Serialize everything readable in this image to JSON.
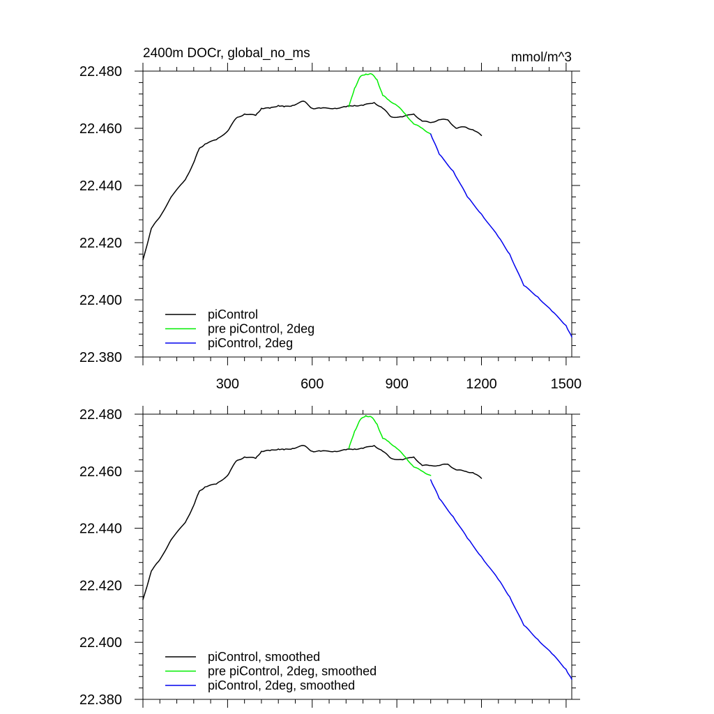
{
  "chart_data": [
    {
      "type": "line",
      "title": "2400m DOCr, global_no_ms",
      "units": "mmol/m^3",
      "xlim": [
        0,
        1520
      ],
      "ylim": [
        22.38,
        22.48
      ],
      "xticks": [
        300,
        600,
        900,
        1200,
        1500
      ],
      "xtick_labels": [
        "300",
        "600",
        "900",
        "1200",
        "1500"
      ],
      "yticks": [
        22.38,
        22.4,
        22.42,
        22.44,
        22.46,
        22.48
      ],
      "ytick_labels": [
        "22.380",
        "22.400",
        "22.420",
        "22.440",
        "22.460",
        "22.480"
      ],
      "legend_position": "bottom-left",
      "series": [
        {
          "name": "piControl",
          "color": "#000000",
          "x": [
            0,
            30,
            60,
            100,
            150,
            180,
            200,
            220,
            260,
            300,
            330,
            360,
            400,
            420,
            450,
            480,
            500,
            530,
            570,
            600,
            630,
            680,
            720,
            750,
            780,
            820,
            850,
            880,
            920,
            960,
            990,
            1020,
            1050,
            1080,
            1110,
            1140,
            1170,
            1200
          ],
          "y": [
            22.414,
            22.425,
            22.429,
            22.436,
            22.442,
            22.448,
            22.453,
            22.4545,
            22.456,
            22.459,
            22.4635,
            22.465,
            22.4645,
            22.467,
            22.467,
            22.468,
            22.4675,
            22.468,
            22.4695,
            22.467,
            22.467,
            22.467,
            22.4675,
            22.468,
            22.468,
            22.469,
            22.467,
            22.464,
            22.464,
            22.465,
            22.4625,
            22.462,
            22.463,
            22.463,
            22.46,
            22.4605,
            22.4595,
            22.4575
          ]
        },
        {
          "name": "pre piControl, 2deg",
          "color": "#00ee00",
          "x": [
            730,
            750,
            770,
            790,
            810,
            830,
            850,
            870,
            900,
            930,
            960,
            990,
            1020
          ],
          "y": [
            22.4675,
            22.474,
            22.478,
            22.479,
            22.479,
            22.477,
            22.4715,
            22.47,
            22.468,
            22.465,
            22.4615,
            22.46,
            22.458
          ]
        },
        {
          "name": "piControl, 2deg",
          "color": "#0000ee",
          "x": [
            1020,
            1050,
            1100,
            1150,
            1200,
            1260,
            1300,
            1350,
            1400,
            1450,
            1500,
            1520
          ],
          "y": [
            22.458,
            22.451,
            22.445,
            22.436,
            22.43,
            22.422,
            22.416,
            22.405,
            22.401,
            22.396,
            22.391,
            22.387
          ]
        }
      ]
    },
    {
      "type": "line",
      "title": "",
      "units": "",
      "xlim": [
        0,
        1520
      ],
      "ylim": [
        22.38,
        22.48
      ],
      "xticks": [
        300,
        600,
        900,
        1200,
        1500
      ],
      "xtick_labels": [],
      "yticks": [
        22.38,
        22.4,
        22.42,
        22.44,
        22.46,
        22.48
      ],
      "ytick_labels": [
        "22.380",
        "22.400",
        "22.420",
        "22.440",
        "22.460",
        "22.480"
      ],
      "legend_position": "bottom-left",
      "series": [
        {
          "name": "piControl, smoothed",
          "color": "#000000",
          "x": [
            0,
            30,
            60,
            100,
            150,
            180,
            200,
            220,
            260,
            300,
            330,
            360,
            400,
            420,
            450,
            480,
            500,
            530,
            570,
            600,
            630,
            680,
            720,
            750,
            780,
            820,
            850,
            880,
            920,
            960,
            990,
            1020,
            1050,
            1080,
            1110,
            1140,
            1170,
            1200
          ],
          "y": [
            22.415,
            22.425,
            22.429,
            22.436,
            22.442,
            22.448,
            22.453,
            22.4545,
            22.4555,
            22.4585,
            22.4635,
            22.465,
            22.4645,
            22.467,
            22.4672,
            22.4678,
            22.4675,
            22.468,
            22.469,
            22.467,
            22.467,
            22.467,
            22.4675,
            22.4678,
            22.468,
            22.469,
            22.467,
            22.4645,
            22.464,
            22.465,
            22.462,
            22.462,
            22.462,
            22.4625,
            22.4605,
            22.46,
            22.4595,
            22.4575
          ]
        },
        {
          "name": "pre piControl, 2deg, smoothed",
          "color": "#00ee00",
          "x": [
            730,
            750,
            770,
            790,
            810,
            830,
            850,
            870,
            900,
            930,
            960,
            990,
            1020
          ],
          "y": [
            22.468,
            22.474,
            22.478,
            22.4795,
            22.479,
            22.4765,
            22.4715,
            22.4705,
            22.468,
            22.465,
            22.4615,
            22.46,
            22.4585
          ]
        },
        {
          "name": "piControl, 2deg, smoothed",
          "color": "#0000ee",
          "x": [
            1020,
            1050,
            1100,
            1150,
            1200,
            1260,
            1300,
            1350,
            1400,
            1450,
            1500,
            1520
          ],
          "y": [
            22.457,
            22.4505,
            22.444,
            22.4365,
            22.43,
            22.422,
            22.416,
            22.406,
            22.401,
            22.396,
            22.3905,
            22.387
          ]
        }
      ]
    }
  ]
}
